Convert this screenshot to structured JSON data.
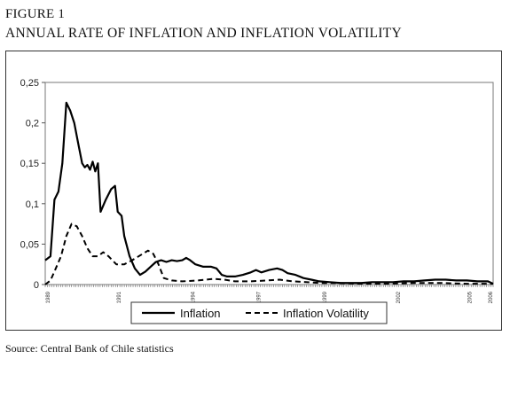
{
  "figure": {
    "label": "FIGURE 1",
    "title": "ANNUAL RATE OF INFLATION AND INFLATION VOLATILITY",
    "source": "Source: Central Bank of Chile statistics"
  },
  "chart_data": {
    "type": "line",
    "ylim": [
      0,
      0.25
    ],
    "yticks": [
      0,
      0.05,
      0.1,
      0.15,
      0.2,
      0.25
    ],
    "ytick_labels": [
      "0",
      "0,05",
      "0,1",
      "0,15",
      "0,2",
      "0,25"
    ],
    "xlim": [
      1989.0,
      2006.0
    ],
    "xtick_labels": [
      {
        "x": 1989.1,
        "label": "1989"
      },
      {
        "x": 1991.8,
        "label": "1991"
      },
      {
        "x": 1994.6,
        "label": "1994"
      },
      {
        "x": 1997.1,
        "label": "1997"
      },
      {
        "x": 1999.6,
        "label": "1999"
      },
      {
        "x": 2002.4,
        "label": "2002"
      },
      {
        "x": 2005.1,
        "label": "2005"
      },
      {
        "x": 2005.9,
        "label": "2006"
      }
    ],
    "grid": false,
    "legend_position": "bottom-center",
    "series": [
      {
        "name": "Inflation",
        "style": "solid",
        "color": "#000000",
        "points": [
          [
            1989.0,
            0.03
          ],
          [
            1989.2,
            0.035
          ],
          [
            1989.35,
            0.105
          ],
          [
            1989.5,
            0.115
          ],
          [
            1989.65,
            0.15
          ],
          [
            1989.8,
            0.225
          ],
          [
            1989.95,
            0.215
          ],
          [
            1990.1,
            0.2
          ],
          [
            1990.25,
            0.175
          ],
          [
            1990.4,
            0.15
          ],
          [
            1990.5,
            0.145
          ],
          [
            1990.6,
            0.148
          ],
          [
            1990.7,
            0.142
          ],
          [
            1990.8,
            0.152
          ],
          [
            1990.9,
            0.14
          ],
          [
            1991.0,
            0.15
          ],
          [
            1991.1,
            0.09
          ],
          [
            1991.3,
            0.105
          ],
          [
            1991.5,
            0.118
          ],
          [
            1991.65,
            0.122
          ],
          [
            1991.75,
            0.09
          ],
          [
            1991.9,
            0.085
          ],
          [
            1992.0,
            0.06
          ],
          [
            1992.2,
            0.035
          ],
          [
            1992.4,
            0.02
          ],
          [
            1992.6,
            0.012
          ],
          [
            1992.8,
            0.016
          ],
          [
            1993.0,
            0.022
          ],
          [
            1993.2,
            0.028
          ],
          [
            1993.4,
            0.03
          ],
          [
            1993.6,
            0.028
          ],
          [
            1993.8,
            0.03
          ],
          [
            1994.0,
            0.029
          ],
          [
            1994.2,
            0.03
          ],
          [
            1994.35,
            0.033
          ],
          [
            1994.5,
            0.03
          ],
          [
            1994.7,
            0.025
          ],
          [
            1995.0,
            0.022
          ],
          [
            1995.3,
            0.022
          ],
          [
            1995.5,
            0.02
          ],
          [
            1995.7,
            0.012
          ],
          [
            1995.9,
            0.01
          ],
          [
            1996.2,
            0.01
          ],
          [
            1996.5,
            0.012
          ],
          [
            1996.8,
            0.015
          ],
          [
            1997.0,
            0.018
          ],
          [
            1997.2,
            0.015
          ],
          [
            1997.5,
            0.018
          ],
          [
            1997.8,
            0.02
          ],
          [
            1998.0,
            0.018
          ],
          [
            1998.2,
            0.014
          ],
          [
            1998.5,
            0.012
          ],
          [
            1998.8,
            0.008
          ],
          [
            1999.1,
            0.006
          ],
          [
            1999.4,
            0.004
          ],
          [
            1999.8,
            0.003
          ],
          [
            2000.2,
            0.002
          ],
          [
            2000.6,
            0.002
          ],
          [
            2001.0,
            0.002
          ],
          [
            2001.4,
            0.003
          ],
          [
            2001.8,
            0.003
          ],
          [
            2002.2,
            0.003
          ],
          [
            2002.6,
            0.004
          ],
          [
            2003.0,
            0.004
          ],
          [
            2003.4,
            0.005
          ],
          [
            2003.8,
            0.006
          ],
          [
            2004.2,
            0.006
          ],
          [
            2004.6,
            0.005
          ],
          [
            2005.0,
            0.005
          ],
          [
            2005.4,
            0.004
          ],
          [
            2005.8,
            0.004
          ],
          [
            2006.0,
            0.001
          ]
        ]
      },
      {
        "name": "Inflation Volatility",
        "style": "dashed",
        "color": "#000000",
        "points": [
          [
            1989.0,
            0.0
          ],
          [
            1989.2,
            0.005
          ],
          [
            1989.4,
            0.02
          ],
          [
            1989.6,
            0.035
          ],
          [
            1989.8,
            0.06
          ],
          [
            1990.0,
            0.075
          ],
          [
            1990.2,
            0.072
          ],
          [
            1990.4,
            0.06
          ],
          [
            1990.6,
            0.045
          ],
          [
            1990.8,
            0.035
          ],
          [
            1991.0,
            0.035
          ],
          [
            1991.2,
            0.04
          ],
          [
            1991.4,
            0.035
          ],
          [
            1991.7,
            0.025
          ],
          [
            1992.0,
            0.025
          ],
          [
            1992.3,
            0.03
          ],
          [
            1992.6,
            0.036
          ],
          [
            1992.9,
            0.042
          ],
          [
            1993.1,
            0.038
          ],
          [
            1993.3,
            0.025
          ],
          [
            1993.5,
            0.008
          ],
          [
            1993.8,
            0.005
          ],
          [
            1994.2,
            0.004
          ],
          [
            1994.8,
            0.005
          ],
          [
            1995.4,
            0.007
          ],
          [
            1995.8,
            0.006
          ],
          [
            1996.2,
            0.004
          ],
          [
            1996.8,
            0.004
          ],
          [
            1997.4,
            0.005
          ],
          [
            1997.9,
            0.006
          ],
          [
            1998.4,
            0.004
          ],
          [
            1998.9,
            0.003
          ],
          [
            1999.4,
            0.002
          ],
          [
            2000.0,
            0.002
          ],
          [
            2001.0,
            0.001
          ],
          [
            2002.0,
            0.001
          ],
          [
            2003.0,
            0.002
          ],
          [
            2004.0,
            0.002
          ],
          [
            2005.0,
            0.001
          ],
          [
            2006.0,
            0.001
          ]
        ]
      }
    ],
    "legend": [
      {
        "label": "Inflation",
        "style": "solid"
      },
      {
        "label": "Inflation Volatility",
        "style": "dashed"
      }
    ]
  }
}
